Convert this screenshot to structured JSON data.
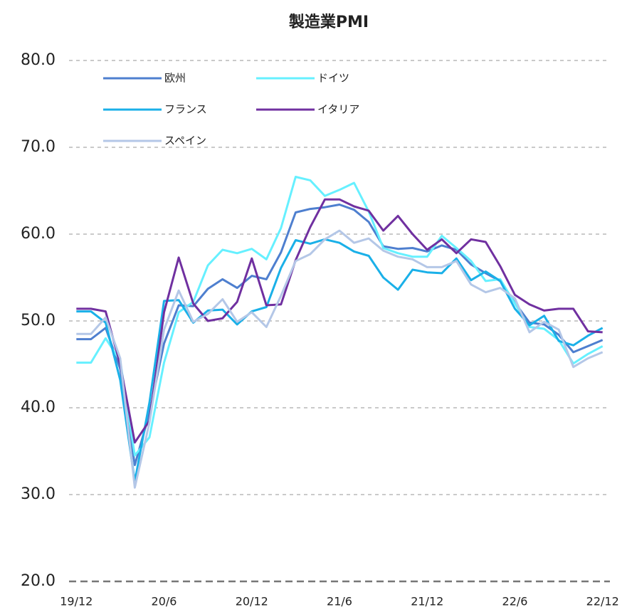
{
  "chart_data": {
    "type": "line",
    "title": "製造業PMI",
    "categories": [
      "19/12",
      null,
      null,
      null,
      null,
      null,
      "20/6",
      null,
      null,
      null,
      null,
      null,
      "20/12",
      null,
      null,
      null,
      null,
      null,
      "21/6",
      null,
      null,
      null,
      null,
      null,
      "21/12",
      null,
      null,
      null,
      null,
      null,
      "22/6",
      null,
      null,
      null,
      null,
      null,
      "22/12"
    ],
    "series": [
      {
        "name": "欧州",
        "color": "#4e7fcf",
        "values": [
          47.9,
          47.9,
          49.2,
          44.5,
          33.4,
          39.4,
          47.4,
          51.8,
          51.7,
          53.7,
          54.8,
          53.8,
          55.2,
          54.8,
          57.9,
          62.5,
          62.9,
          63.1,
          63.4,
          62.8,
          61.4,
          58.6,
          58.3,
          58.4,
          58.0,
          58.7,
          58.2,
          56.5,
          55.5,
          54.6,
          52.1,
          49.8,
          49.6,
          48.4,
          46.4,
          47.1,
          47.8
        ]
      },
      {
        "name": "ドイツ",
        "color": "#66f0ff",
        "values": [
          45.2,
          45.2,
          48.0,
          45.4,
          34.5,
          36.6,
          45.2,
          51.0,
          52.2,
          56.4,
          58.2,
          57.8,
          58.3,
          57.1,
          60.7,
          66.6,
          66.2,
          64.4,
          65.1,
          65.9,
          62.6,
          58.4,
          57.8,
          57.4,
          57.4,
          59.8,
          58.4,
          56.9,
          54.6,
          54.8,
          52.0,
          49.3,
          49.1,
          47.8,
          45.1,
          46.2,
          47.1
        ]
      },
      {
        "name": "フランス",
        "color": "#1ab0e8",
        "values": [
          51.1,
          51.1,
          49.8,
          43.2,
          31.5,
          40.6,
          52.3,
          52.4,
          49.8,
          51.2,
          51.3,
          49.6,
          51.1,
          51.6,
          56.1,
          59.3,
          58.9,
          59.4,
          59.0,
          58.0,
          57.5,
          55.0,
          53.6,
          55.9,
          55.6,
          55.5,
          57.2,
          54.7,
          55.7,
          54.6,
          51.4,
          49.5,
          50.6,
          47.7,
          47.2,
          48.3,
          49.2
        ]
      },
      {
        "name": "イタリア",
        "color": "#7030a0",
        "values": [
          51.4,
          51.4,
          51.1,
          45,
          36,
          38.5,
          51,
          57.3,
          52,
          50,
          50.3,
          52.2,
          57.2,
          51.8,
          51.9,
          57,
          60.8,
          64,
          64,
          63.2,
          62.7,
          60.4,
          62.1,
          60,
          58.2,
          59.4,
          57.8,
          59.4,
          59.1,
          56.3,
          53,
          51.9,
          51.2,
          51.4,
          51.4,
          48.8,
          48.7
        ]
      },
      {
        "name": "スペイン",
        "color": "#b4c7e7",
        "values": [
          48.5,
          48.5,
          50.4,
          45.7,
          30.8,
          38.3,
          49,
          53.5,
          49.9,
          50.8,
          52.5,
          49.9,
          51,
          49.3,
          52.9,
          56.9,
          57.7,
          59.4,
          60.4,
          59.0,
          59.5,
          58.1,
          57.4,
          57.1,
          56.2,
          56.2,
          56.9,
          54.2,
          53.3,
          53.8,
          52.6,
          48.7,
          49.9,
          49.0,
          44.7,
          45.7,
          46.4
        ]
      }
    ],
    "ylim": [
      20,
      80
    ],
    "yticks": [
      {
        "value": 20,
        "label": "20.0"
      },
      {
        "value": 30,
        "label": "30.0"
      },
      {
        "value": 40,
        "label": "40.0"
      },
      {
        "value": 50,
        "label": "50.0"
      },
      {
        "value": 60,
        "label": "60.0"
      },
      {
        "value": 70,
        "label": "70.0"
      },
      {
        "value": 80,
        "label": "80.0"
      }
    ],
    "grid": true,
    "legend": "upper left"
  }
}
